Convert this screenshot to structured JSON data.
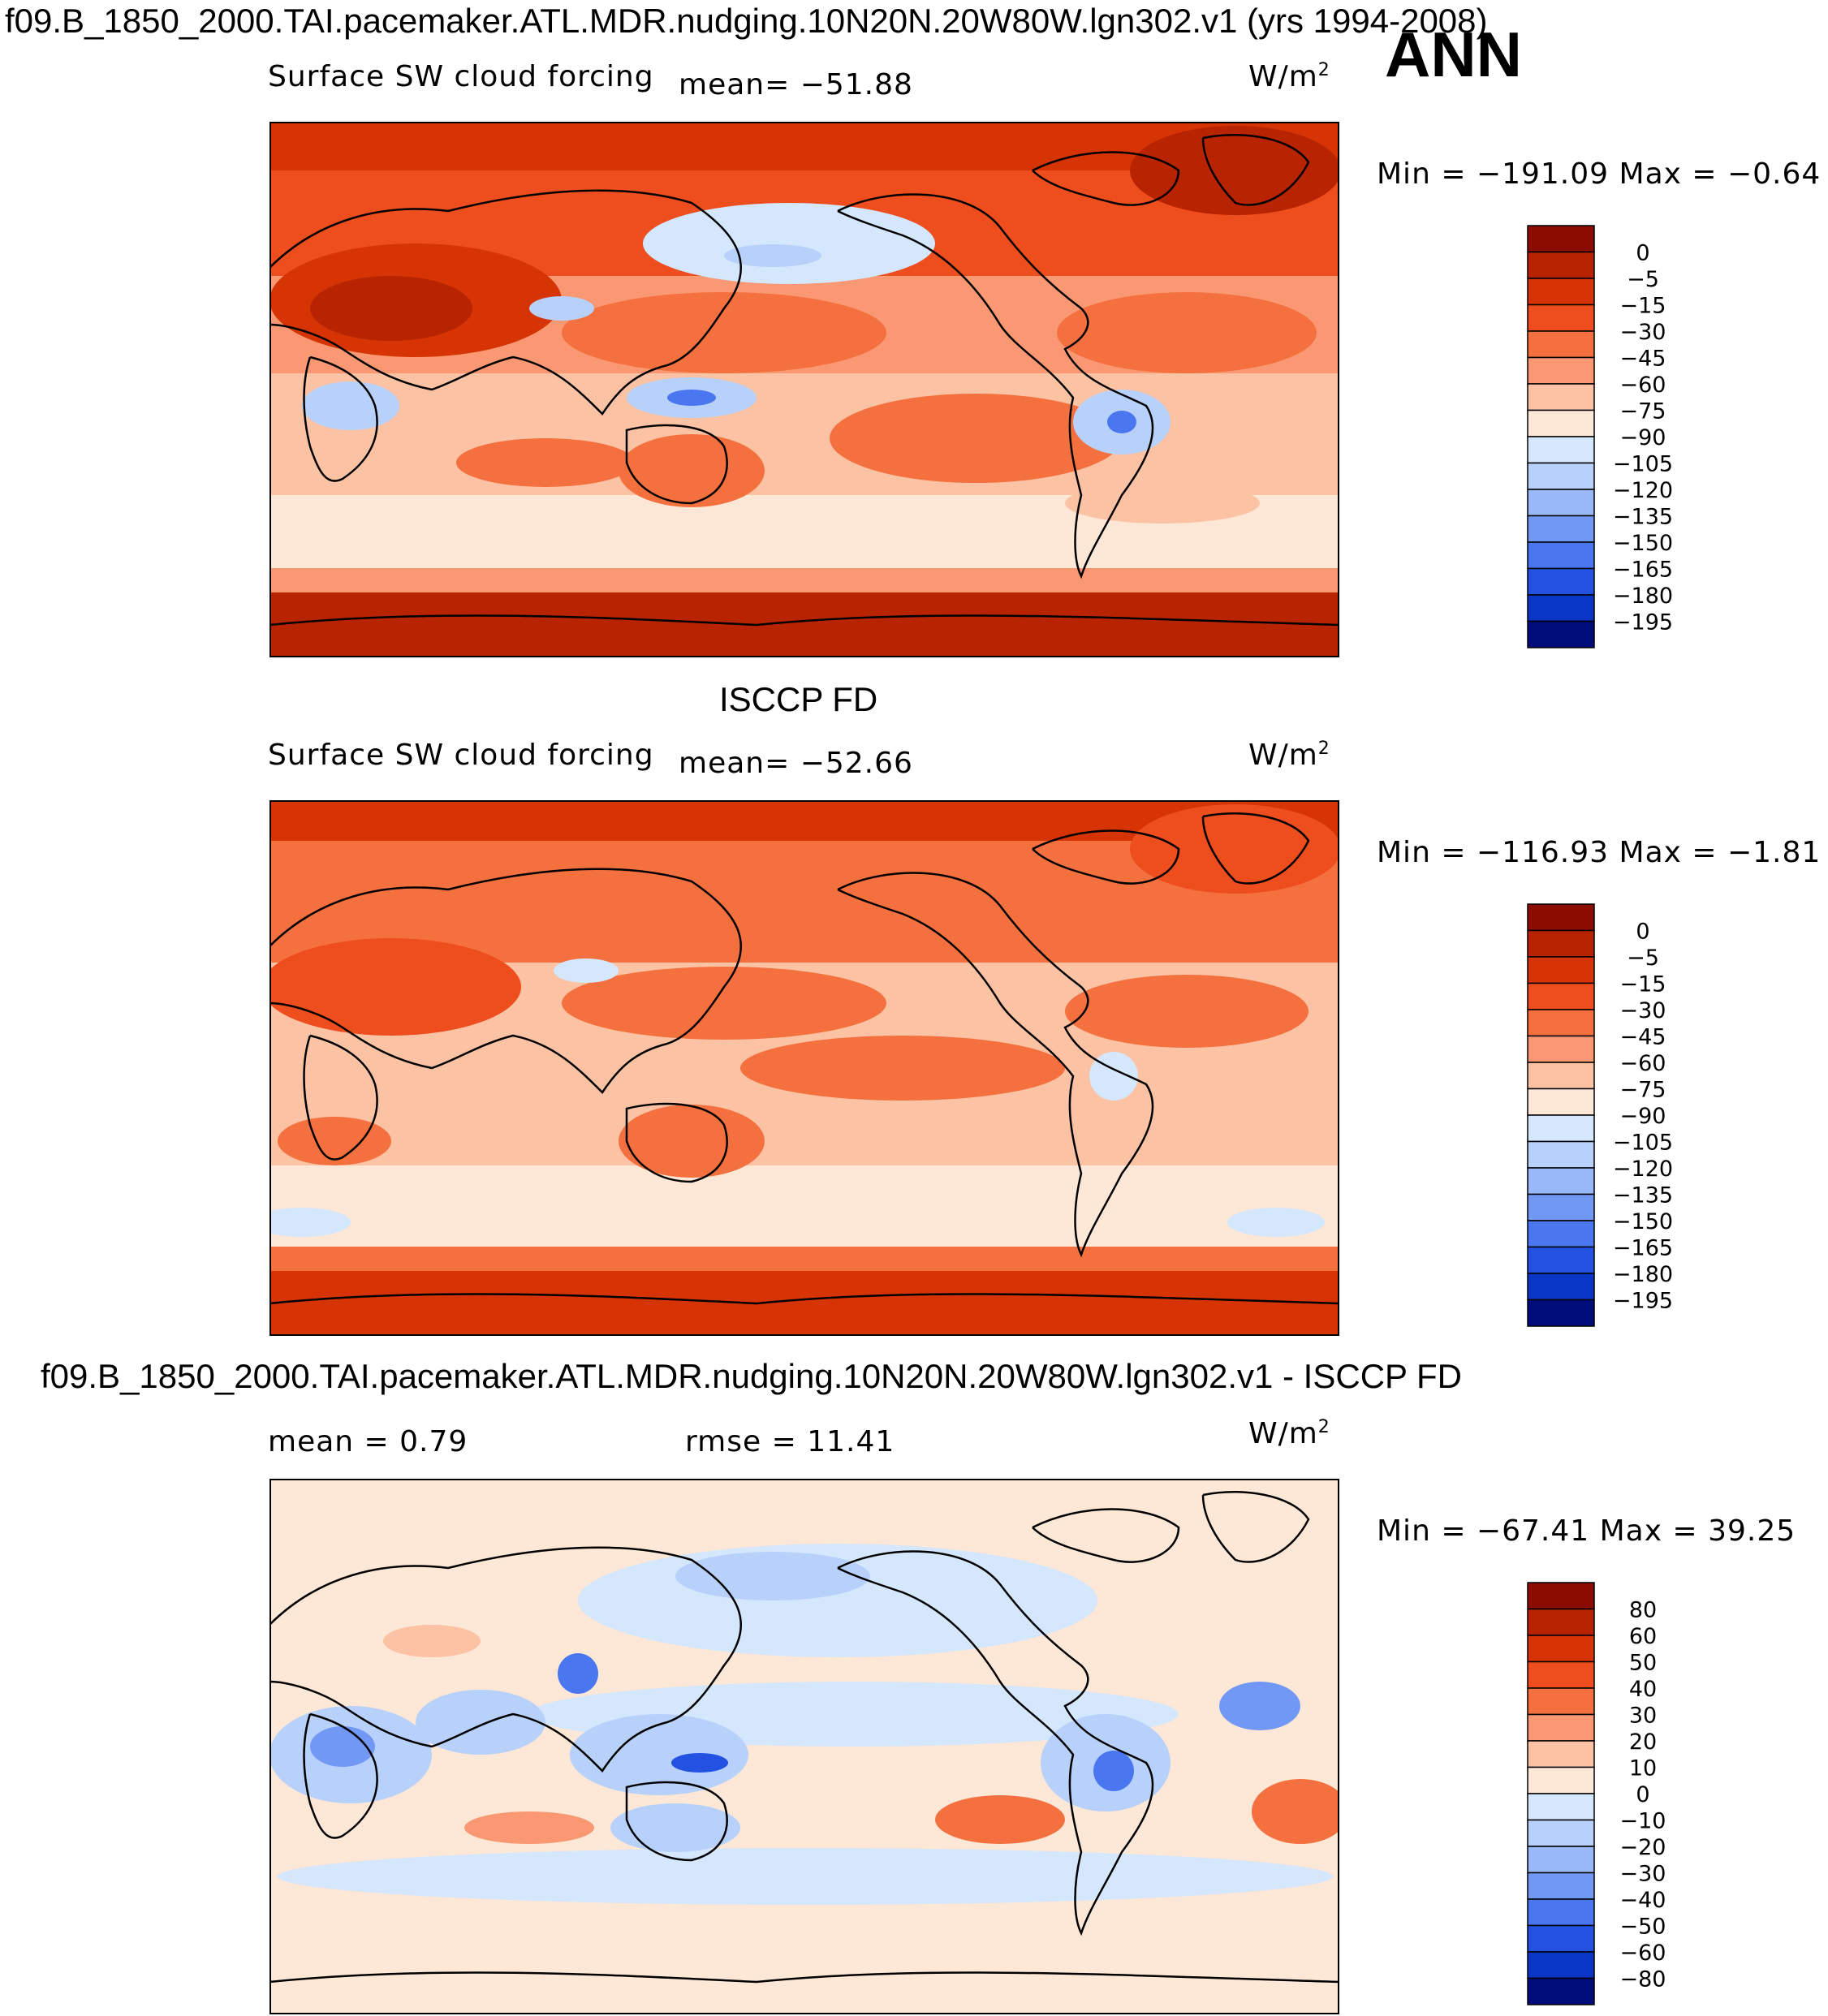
{
  "header": {
    "title": "f09.B_1850_2000.TAI.pacemaker.ATL.MDR.nudging.10N20N.20W80W.lgn302.v1 (yrs 1994-2008)",
    "season": "ANN"
  },
  "colors": {
    "pos": [
      "#fde7d6",
      "#fcc5a8",
      "#fba381",
      "#f7794d",
      "#f1532c",
      "#e53710",
      "#c42704",
      "#8b0c00"
    ],
    "neg": [
      "#d4e7fc",
      "#b7d1fb",
      "#98b8fa",
      "#7298f5",
      "#4a77ef",
      "#2352e2",
      "#0a36c7",
      "#0321a1",
      "#000c7a"
    ],
    "land": "#000000"
  },
  "chart_data": [
    {
      "type": "heatmap",
      "name": "model",
      "subtitle": "Surface SW cloud forcing",
      "mean_text": "mean=  −51.88",
      "units_text": "W/m",
      "units_sup": "2",
      "minmax_text": "Min  =  −191.09  Max  =   −0.64",
      "min": -191.09,
      "max": -0.64,
      "levels": [
        "0",
        "−5",
        "−15",
        "−30",
        "−45",
        "−60",
        "−75",
        "−90",
        "−105",
        "−120",
        "−135",
        "−150",
        "−165",
        "−180",
        "−195"
      ],
      "level_colors": [
        "#8b0c00",
        "#b82301",
        "#d63404",
        "#ee4d1d",
        "#f5703f",
        "#f99872",
        "#fcc2a4",
        "#fde7d6",
        "#d4e7fc",
        "#b7d1fb",
        "#98b8fa",
        "#7298f5",
        "#4a77ef",
        "#2352e2",
        "#0a36c7",
        "#000c7a"
      ]
    },
    {
      "type": "heatmap",
      "name": "obs",
      "title": "ISCCP FD",
      "subtitle": "Surface SW cloud forcing",
      "mean_text": "mean=  −52.66",
      "units_text": "W/m",
      "units_sup": "2",
      "minmax_text": "Min  =  −116.93  Max  =   −1.81",
      "min": -116.93,
      "max": -1.81,
      "levels": [
        "0",
        "−5",
        "−15",
        "−30",
        "−45",
        "−60",
        "−75",
        "−90",
        "−105",
        "−120",
        "−135",
        "−150",
        "−165",
        "−180",
        "−195"
      ],
      "level_colors": [
        "#8b0c00",
        "#b82301",
        "#d63404",
        "#ee4d1d",
        "#f5703f",
        "#f99872",
        "#fcc2a4",
        "#fde7d6",
        "#d4e7fc",
        "#b7d1fb",
        "#98b8fa",
        "#7298f5",
        "#4a77ef",
        "#2352e2",
        "#0a36c7",
        "#000c7a"
      ]
    },
    {
      "type": "heatmap",
      "name": "diff",
      "title": "f09.B_1850_2000.TAI.pacemaker.ATL.MDR.nudging.10N20N.20W80W.lgn302.v1 - ISCCP FD",
      "mean_text": "mean  =    0.79",
      "rmse_text": "rmse  =    11.41",
      "units_text": "W/m",
      "units_sup": "2",
      "minmax_text": "Min  =  −67.41  Max  =    39.25",
      "min": -67.41,
      "max": 39.25,
      "mean": 0.79,
      "rmse": 11.41,
      "levels": [
        "80",
        "60",
        "50",
        "40",
        "30",
        "20",
        "10",
        "0",
        "−10",
        "−20",
        "−30",
        "−40",
        "−50",
        "−60",
        "−80"
      ],
      "level_colors": [
        "#8b0c00",
        "#b82301",
        "#d63404",
        "#ee4d1d",
        "#f5703f",
        "#f99872",
        "#fcc2a4",
        "#fde7d6",
        "#d4e7fc",
        "#b7d1fb",
        "#98b8fa",
        "#7298f5",
        "#4a77ef",
        "#2352e2",
        "#0a36c7",
        "#000c7a"
      ]
    }
  ]
}
